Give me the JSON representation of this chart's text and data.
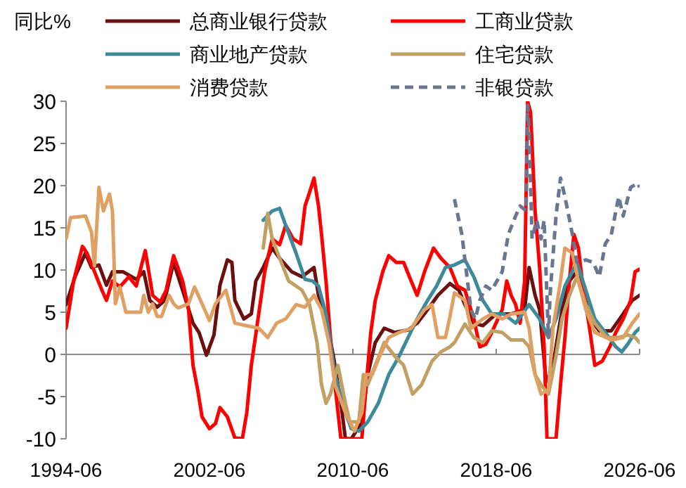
{
  "chart_data": {
    "type": "line",
    "ylabel": "同比%",
    "xlim": [
      "1994-06",
      "2026-06"
    ],
    "xticks": [
      "1994-06",
      "2002-06",
      "2010-06",
      "2018-06",
      "2026-06"
    ],
    "ylim": [
      -10,
      30
    ],
    "yticks": [
      -10,
      -5,
      0,
      5,
      10,
      15,
      20,
      25,
      30
    ],
    "legend": "top",
    "series": [
      {
        "name": "总商业银行贷款",
        "color": "#6b0f0f",
        "x": [
          "1994-06",
          "1994-12",
          "1995-07",
          "1995-11",
          "1996-04",
          "1996-09",
          "1997-01",
          "1997-08",
          "1998-05",
          "1998-10",
          "1999-02",
          "1999-07",
          "1999-12",
          "2000-06",
          "2000-12",
          "2001-07",
          "2001-11",
          "2002-04",
          "2002-09",
          "2003-01",
          "2003-06",
          "2003-09",
          "2003-11",
          "2004-05",
          "2004-10",
          "2005-01",
          "2005-06",
          "2005-12",
          "2006-05",
          "2007-01",
          "2007-08",
          "2008-04",
          "2008-07",
          "2008-12",
          "2009-05",
          "2009-10",
          "2010-01",
          "2010-05",
          "2010-12",
          "2011-04",
          "2011-09",
          "2012-03",
          "2012-10",
          "2013-07",
          "2014-01",
          "2014-08",
          "2015-03",
          "2015-11",
          "2016-05",
          "2016-09",
          "2017-03",
          "2017-09",
          "2018-06",
          "2019-04",
          "2020-01",
          "2020-04",
          "2020-08",
          "2020-11",
          "2021-03",
          "2021-06",
          "2021-10",
          "2022-02",
          "2022-07",
          "2022-12",
          "2023-04",
          "2023-09",
          "2024-03",
          "2024-11",
          "2025-07",
          "2026-01",
          "2026-06"
        ],
        "values": [
          5.9,
          9.2,
          12,
          10.3,
          10.6,
          8.2,
          9.8,
          9.8,
          8.9,
          9.8,
          6.4,
          5.6,
          6.4,
          10.9,
          7.6,
          3.7,
          2.6,
          -0.1,
          2.3,
          8.2,
          11.2,
          10.9,
          6.4,
          4.2,
          4.8,
          8.7,
          10.3,
          12.6,
          11.4,
          9.8,
          9.2,
          10.3,
          7,
          4.2,
          -0.2,
          -5.8,
          -10,
          -10,
          -8,
          -2.4,
          1.4,
          3.1,
          2.6,
          2.9,
          3.7,
          5.3,
          7,
          8.4,
          7.6,
          5.9,
          3.7,
          3.4,
          4.8,
          4.8,
          5.3,
          10.3,
          7,
          5.3,
          -2.4,
          -3.6,
          0.9,
          5.3,
          8.7,
          9.8,
          7.6,
          4.2,
          2.8,
          2.8,
          4.8,
          6.4,
          7
        ]
      },
      {
        "name": "工商业贷款",
        "color": "#ff0000",
        "x": [
          "1994-06",
          "1994-11",
          "1995-05",
          "1995-08",
          "1996-01",
          "1996-06",
          "1996-09",
          "1997-01",
          "1997-06",
          "1997-12",
          "1998-05",
          "1998-11",
          "1999-04",
          "1999-09",
          "2000-01",
          "2000-06",
          "2000-12",
          "2001-04",
          "2001-07",
          "2001-10",
          "2002-01",
          "2002-06",
          "2002-10",
          "2003-01",
          "2003-06",
          "2003-11",
          "2004-04",
          "2004-07",
          "2004-10",
          "2005-03",
          "2005-07",
          "2005-12",
          "2006-05",
          "2006-09",
          "2007-02",
          "2007-07",
          "2007-10",
          "2008-01",
          "2008-04",
          "2008-07",
          "2008-09",
          "2008-12",
          "2009-03",
          "2009-06",
          "2009-10",
          "2010-12",
          "2011-03",
          "2011-06",
          "2011-09",
          "2012-02",
          "2012-06",
          "2012-11",
          "2013-04",
          "2013-09",
          "2014-01",
          "2014-06",
          "2014-12",
          "2015-05",
          "2015-11",
          "2016-04",
          "2016-09",
          "2017-03",
          "2017-07",
          "2017-11",
          "2018-03",
          "2018-10",
          "2019-01",
          "2019-04",
          "2019-07",
          "2019-10",
          "2020-01",
          "2020-03",
          "2020-05",
          "2020-08",
          "2020-11",
          "2021-02",
          "2021-04",
          "2021-10",
          "2022-01",
          "2022-04",
          "2022-07",
          "2022-10",
          "2023-01",
          "2023-04",
          "2023-08",
          "2023-12",
          "2024-05",
          "2024-10",
          "2025-02",
          "2025-07",
          "2025-12",
          "2026-03",
          "2026-06"
        ],
        "values": [
          3.1,
          8.7,
          12.8,
          12,
          9.8,
          7.6,
          6.4,
          8.7,
          8,
          9.2,
          8.1,
          12.3,
          7,
          6.2,
          7.6,
          11.7,
          8.7,
          5.3,
          -1.3,
          -4.1,
          -7.4,
          -8.8,
          -8.2,
          -6.3,
          -7.4,
          -9.9,
          -10,
          -6.9,
          -1.3,
          4.8,
          9.8,
          13.7,
          13,
          15.3,
          13.7,
          13.1,
          17.6,
          19.2,
          20.9,
          17.6,
          14.2,
          8.7,
          2,
          -3.6,
          -10,
          -10,
          -3.6,
          2.6,
          6.4,
          9.8,
          11.7,
          10.9,
          10.9,
          8.7,
          7,
          9.8,
          12.6,
          11.4,
          10.3,
          8.1,
          7.6,
          4.2,
          0.9,
          1.2,
          2.6,
          5.3,
          8.7,
          7,
          5.9,
          3.7,
          8.7,
          30,
          28.7,
          17,
          10.3,
          0.9,
          -10,
          -10,
          -3.6,
          2,
          8.7,
          14.2,
          12.6,
          8.1,
          3.7,
          -1.3,
          -0.8,
          0.9,
          2.6,
          4.2,
          6.4,
          9.8,
          10.1
        ]
      },
      {
        "name": "商业地产贷款",
        "color": "#3f8a9a",
        "x": [
          "2005-06",
          "2005-12",
          "2006-05",
          "2006-09",
          "2007-04",
          "2007-10",
          "2008-03",
          "2008-07",
          "2008-12",
          "2009-06",
          "2010-01",
          "2010-05",
          "2010-10",
          "2011-04",
          "2011-11",
          "2012-06",
          "2013-01",
          "2013-07",
          "2014-01",
          "2014-08",
          "2015-02",
          "2015-08",
          "2016-02",
          "2016-09",
          "2017-03",
          "2017-09",
          "2018-03",
          "2018-11",
          "2019-07",
          "2020-04",
          "2020-11",
          "2021-05",
          "2021-10",
          "2022-04",
          "2022-12",
          "2023-06",
          "2023-12",
          "2024-07",
          "2025-02",
          "2025-06",
          "2025-10",
          "2026-03",
          "2026-06"
        ],
        "values": [
          15.9,
          17,
          17.3,
          15.3,
          12,
          8.9,
          8.7,
          8.1,
          4.8,
          -2.4,
          -6.9,
          -8.8,
          -9.1,
          -8,
          -5.8,
          -2.4,
          -0.2,
          2,
          4.2,
          6.4,
          8.1,
          10.3,
          10.6,
          11.2,
          9.2,
          6.4,
          4.8,
          4.8,
          3.7,
          5.9,
          4.2,
          2,
          4.2,
          8.1,
          10.9,
          7.6,
          4.2,
          2.6,
          0.9,
          0.3,
          1.2,
          2.6,
          3.1
        ]
      },
      {
        "name": "住宅贷款",
        "color": "#c0a064",
        "x": [
          "2005-06",
          "2005-09",
          "2005-12",
          "2006-05",
          "2006-11",
          "2007-04",
          "2007-08",
          "2008-01",
          "2008-06",
          "2008-09",
          "2008-12",
          "2009-03",
          "2009-08",
          "2010-01",
          "2010-04",
          "2010-10",
          "2011-01",
          "2011-04",
          "2011-09",
          "2012-03",
          "2012-10",
          "2013-04",
          "2013-10",
          "2014-04",
          "2014-11",
          "2015-05",
          "2015-11",
          "2016-02",
          "2016-09",
          "2017-03",
          "2017-09",
          "2018-03",
          "2018-10",
          "2019-04",
          "2019-12",
          "2020-04",
          "2020-08",
          "2020-12",
          "2021-05",
          "2021-10",
          "2022-02",
          "2022-07",
          "2022-12",
          "2023-06",
          "2023-12",
          "2024-08",
          "2025-04",
          "2025-10",
          "2026-03",
          "2026-06"
        ],
        "values": [
          12.6,
          16.7,
          13.7,
          11.4,
          8.7,
          8.1,
          7.6,
          5.9,
          1.4,
          -3.6,
          -5.8,
          -4.7,
          -1.3,
          -5.8,
          -8,
          -8,
          -2.4,
          -3.6,
          -1.3,
          1.4,
          -0.2,
          -1.3,
          -4.7,
          -3.6,
          -0.8,
          0.3,
          0.9,
          1.4,
          3.6,
          2,
          1.4,
          2.8,
          2.6,
          1.7,
          1.7,
          0.9,
          -2.4,
          -3.6,
          -4.7,
          -0.2,
          4.2,
          7,
          9.2,
          5.9,
          3.7,
          2,
          2,
          2.3,
          2,
          1.4
        ]
      },
      {
        "name": "消费贷款",
        "color": "#e0a064",
        "x": [
          "1994-06",
          "1994-09",
          "1995-07",
          "1995-11",
          "1996-01",
          "1996-04",
          "1996-07",
          "1996-11",
          "1997-01",
          "1997-03",
          "1997-06",
          "1997-10",
          "1998-08",
          "1998-10",
          "1999-01",
          "1999-04",
          "1999-07",
          "1999-10",
          "2000-03",
          "2000-06",
          "2000-09",
          "2001-04",
          "2001-08",
          "2002-01",
          "2002-06",
          "2002-10",
          "2003-05",
          "2003-11",
          "2004-07",
          "2005-03",
          "2005-09",
          "2006-03",
          "2006-09",
          "2007-04",
          "2007-10",
          "2008-04",
          "2008-09",
          "2009-02",
          "2009-06",
          "2010-01",
          "2010-07",
          "2010-12",
          "2011-03",
          "2011-07",
          "2011-12",
          "2012-06",
          "2013-01",
          "2013-09",
          "2014-06",
          "2014-11",
          "2015-03",
          "2015-08",
          "2015-11",
          "2016-02",
          "2016-09",
          "2017-01",
          "2017-09",
          "2018-03",
          "2018-10",
          "2019-04",
          "2020-01",
          "2020-04",
          "2020-08",
          "2020-12",
          "2021-05",
          "2021-08",
          "2022-01",
          "2022-04",
          "2022-09",
          "2023-01",
          "2023-06",
          "2023-12",
          "2024-11",
          "2025-07",
          "2026-01",
          "2026-06"
        ],
        "values": [
          13.7,
          16.2,
          16.4,
          14.5,
          10.5,
          19.8,
          17,
          19,
          17,
          6,
          8,
          5,
          5,
          7,
          5,
          6,
          4.5,
          4.5,
          7,
          6,
          5.5,
          6,
          8,
          6,
          4,
          6,
          7.6,
          3.7,
          3.4,
          3.1,
          2,
          3.7,
          4.2,
          5.9,
          5.6,
          7,
          5.3,
          1.4,
          -3.6,
          -6.9,
          -9.1,
          -6.9,
          -2.4,
          -2.4,
          -0.2,
          2,
          2.6,
          3.1,
          5.3,
          5.9,
          2,
          2,
          4.5,
          7.3,
          6.4,
          3.1,
          4.2,
          4.8,
          4.2,
          4.8,
          5,
          3.1,
          -2.4,
          -4.7,
          -4.2,
          3.1,
          8.7,
          12.6,
          12,
          8.7,
          5.3,
          2.6,
          1.7,
          2,
          3.7,
          4.8
        ]
      },
      {
        "name": "非银贷款",
        "color": "#6a7590",
        "line_style": "dashed",
        "x": [
          "2016-02",
          "2016-07",
          "2016-10",
          "2017-01",
          "2017-04",
          "2017-07",
          "2017-11",
          "2018-03",
          "2018-10",
          "2019-02",
          "2019-07",
          "2019-10",
          "2020-02",
          "2020-03",
          "2020-04",
          "2020-06",
          "2020-09",
          "2020-12",
          "2021-02",
          "2021-05",
          "2021-06",
          "2021-10",
          "2022-01",
          "2022-04",
          "2022-09",
          "2022-12",
          "2023-06",
          "2023-11",
          "2024-03",
          "2024-07",
          "2024-11",
          "2025-04",
          "2025-07",
          "2025-12",
          "2026-05",
          "2026-06"
        ],
        "values": [
          18.4,
          14.2,
          9.8,
          5.3,
          4.2,
          6.4,
          8.1,
          7.6,
          9.8,
          14.2,
          16.4,
          17.6,
          17,
          29.5,
          26.4,
          13.7,
          15.9,
          13.7,
          15.9,
          2,
          6.9,
          16.4,
          20.9,
          18.7,
          14.2,
          10.9,
          11.2,
          10.9,
          9.2,
          13.1,
          14.2,
          18.7,
          16.4,
          19.8,
          20.3,
          19.8
        ]
      }
    ]
  }
}
